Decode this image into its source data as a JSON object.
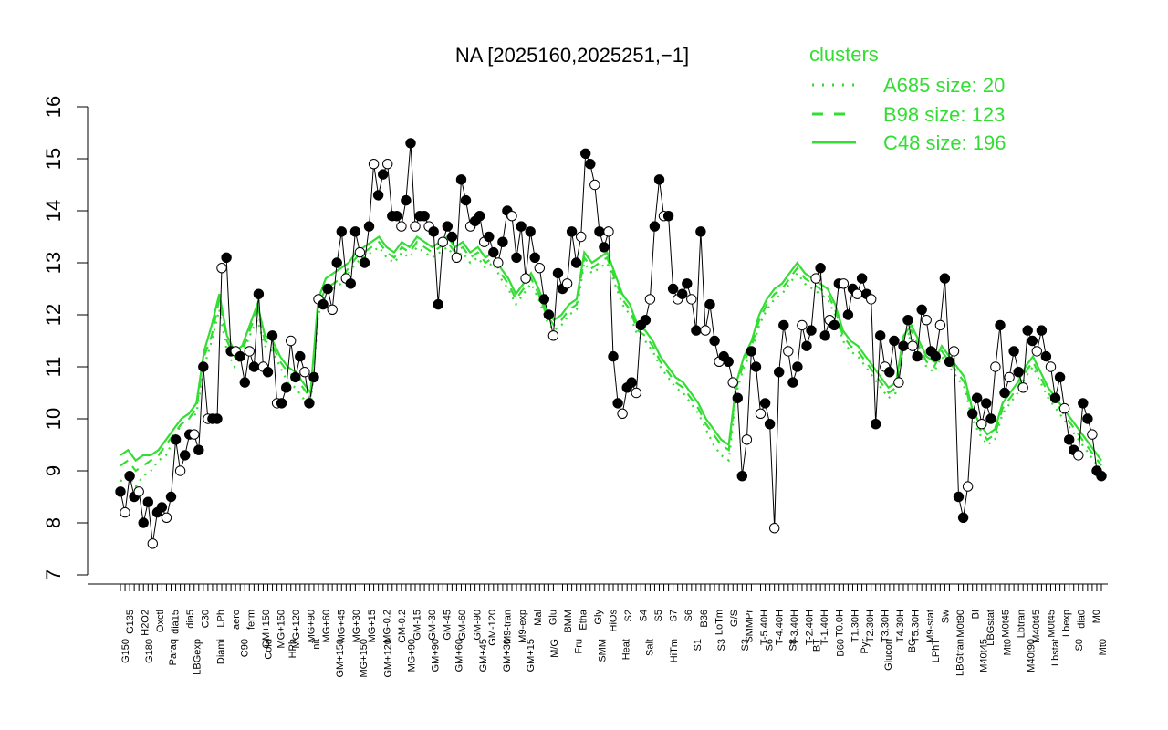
{
  "chart_data": {
    "type": "line",
    "title": "NA [2025160,2025251,−1]",
    "ylim": [
      7,
      16
    ],
    "yticks": [
      "7",
      "8",
      "9",
      "10",
      "11",
      "12",
      "13",
      "14",
      "15",
      "16"
    ],
    "grid": false,
    "legend_placement": "top-right",
    "legend": {
      "title": "clusters",
      "entries": [
        {
          "label": "A685 size: 20",
          "style": "dotted"
        },
        {
          "label": "B98 size: 123",
          "style": "dashed"
        },
        {
          "label": "C48 size: 196",
          "style": "solid"
        }
      ]
    },
    "colors": {
      "cluster": "#33dd33",
      "points": "#000000"
    },
    "x_labels_upper": [
      "G135",
      "H2O2",
      "Oxctl",
      "dia15",
      "dia5",
      "C30",
      "LPh",
      "aero",
      "ferm",
      "GM+150",
      "MG+150",
      "MG+120",
      "MG+90",
      "MG+60",
      "MG+45",
      "MG+30",
      "MG+15",
      "MG-0.2",
      "GM-0.2",
      "GM-15",
      "GM-30",
      "GM-45",
      "GM-60",
      "GM-90",
      "GM-120",
      "M9-tran",
      "M9-exp",
      "Mal",
      "Glu",
      "BMM",
      "Etha",
      "Gly",
      "HiOs",
      "S2",
      "S4",
      "S5",
      "S7",
      "S6",
      "B36",
      "LoTm",
      "G/S",
      "SMMPr",
      "T-5.40H",
      "T-4.40H",
      "T-3.40H",
      "T-2.40H",
      "T-1.40H",
      "T0.0H",
      "T1.30H",
      "T2.30H",
      "T3.30H",
      "T4.30H",
      "T5.30H",
      "M9-stat",
      "Sw",
      "M0t90",
      "BI",
      "LBGstat",
      "M0t45",
      "Lbtran",
      "M40t45",
      "M0t45",
      "Lbexp",
      "dia0",
      "M0"
    ],
    "x_labels_lower": [
      "G150",
      "G180",
      "Paraq",
      "LBGexp",
      "Diami",
      "C90",
      "Cold",
      "HPh",
      "nit",
      "GM+150",
      "MG+150",
      "GM+120",
      "MG+90",
      "GM+90",
      "GM+60",
      "GM+45",
      "GM+30",
      "GM+15",
      "M/G",
      "Fru",
      "SMM",
      "Heat",
      "Salt",
      "HiTm",
      "S1",
      "S3",
      "S3",
      "S6",
      "S8",
      "BT",
      "B60",
      "Pyr",
      "Glucon",
      "BC",
      "LPhT",
      "LBGtran",
      "M40t45",
      "Mt0",
      "M40t90",
      "Lbstat",
      "S0",
      "Mt0"
    ],
    "series": [
      {
        "name": "A685 size: 20",
        "style": "dotted",
        "values": [
          8.8,
          8.9,
          8.7,
          8.9,
          9.0,
          9.2,
          9.3,
          9.6,
          9.9,
          10.0,
          10.1,
          11.0,
          11.5,
          12.1,
          11.3,
          11.0,
          11.2,
          11.6,
          11.9,
          11.4,
          11.3,
          11.0,
          10.7,
          10.6,
          10.4,
          10.2,
          12.0,
          12.4,
          12.5,
          12.6,
          12.8,
          13.0,
          13.1,
          13.2,
          13.3,
          13.1,
          13.0,
          13.2,
          13.1,
          13.3,
          13.2,
          13.1,
          13.2,
          13.3,
          13.1,
          13.2,
          13.0,
          13.1,
          12.9,
          13.0,
          12.7,
          12.5,
          12.2,
          12.4,
          12.6,
          12.3,
          11.9,
          11.7,
          11.8,
          12.0,
          12.1,
          13.0,
          12.8,
          12.9,
          13.0,
          12.6,
          12.2,
          12.0,
          11.6,
          11.5,
          11.3,
          11.0,
          10.8,
          10.6,
          10.5,
          10.3,
          10.1,
          9.8,
          9.5,
          9.3,
          9.2,
          10.5,
          11.0,
          11.3,
          11.8,
          12.1,
          12.3,
          12.4,
          12.6,
          12.8,
          12.6,
          12.5,
          12.4,
          12.3,
          12.0,
          11.5,
          11.3,
          11.2,
          11.0,
          10.8,
          10.6,
          10.4,
          10.5,
          11.4,
          11.6,
          11.3,
          11.0,
          10.9,
          11.2,
          11.0,
          10.8,
          10.6,
          10.0,
          9.7,
          9.5,
          9.6,
          10.1,
          10.3,
          10.5,
          10.8,
          11.0,
          10.7,
          10.4,
          10.2,
          10.0,
          9.8,
          9.6,
          9.4,
          9.2,
          9.0
        ]
      },
      {
        "name": "B98 size: 123",
        "style": "dashed",
        "values": [
          9.1,
          9.2,
          9.0,
          9.1,
          9.2,
          9.3,
          9.5,
          9.7,
          9.9,
          10.0,
          10.2,
          11.2,
          11.6,
          12.3,
          11.5,
          11.2,
          11.3,
          11.7,
          12.1,
          11.5,
          11.4,
          11.1,
          10.9,
          10.8,
          10.6,
          10.4,
          12.2,
          12.5,
          12.6,
          12.7,
          12.9,
          13.1,
          13.2,
          13.3,
          13.4,
          13.2,
          13.1,
          13.3,
          13.2,
          13.4,
          13.3,
          13.2,
          13.3,
          13.4,
          13.2,
          13.3,
          13.1,
          13.2,
          13.0,
          13.1,
          12.8,
          12.6,
          12.3,
          12.5,
          12.7,
          12.4,
          12.0,
          11.8,
          11.9,
          12.1,
          12.2,
          13.1,
          12.9,
          13.0,
          13.1,
          12.7,
          12.3,
          12.1,
          11.7,
          11.6,
          11.4,
          11.1,
          10.9,
          10.7,
          10.6,
          10.4,
          10.2,
          9.9,
          9.7,
          9.5,
          9.4,
          10.6,
          11.1,
          11.4,
          11.9,
          12.2,
          12.4,
          12.5,
          12.7,
          12.9,
          12.7,
          12.6,
          12.5,
          12.4,
          12.1,
          11.6,
          11.4,
          11.3,
          11.1,
          10.9,
          10.7,
          10.5,
          10.6,
          11.5,
          11.7,
          11.4,
          11.1,
          11.0,
          11.3,
          11.1,
          10.9,
          10.7,
          10.1,
          9.8,
          9.6,
          9.7,
          10.2,
          10.4,
          10.6,
          10.9,
          11.1,
          10.8,
          10.5,
          10.3,
          10.1,
          9.9,
          9.7,
          9.5,
          9.3,
          9.1
        ]
      },
      {
        "name": "C48 size: 196",
        "style": "solid",
        "values": [
          9.3,
          9.4,
          9.2,
          9.3,
          9.3,
          9.4,
          9.6,
          9.8,
          10.0,
          10.1,
          10.3,
          11.3,
          11.8,
          12.4,
          11.6,
          11.3,
          11.4,
          11.8,
          12.2,
          11.6,
          11.5,
          11.2,
          11.0,
          10.9,
          10.7,
          10.5,
          12.3,
          12.7,
          12.8,
          12.9,
          13.0,
          13.2,
          13.3,
          13.4,
          13.5,
          13.3,
          13.2,
          13.4,
          13.3,
          13.5,
          13.4,
          13.3,
          13.4,
          13.5,
          13.3,
          13.4,
          13.2,
          13.3,
          13.1,
          13.2,
          12.9,
          12.7,
          12.4,
          12.6,
          12.8,
          12.5,
          12.1,
          11.9,
          12.0,
          12.2,
          12.3,
          13.2,
          13.0,
          13.1,
          13.2,
          12.8,
          12.4,
          12.2,
          11.8,
          11.7,
          11.5,
          11.2,
          11.0,
          10.8,
          10.7,
          10.5,
          10.3,
          10.0,
          9.8,
          9.6,
          9.5,
          10.7,
          11.2,
          11.5,
          12.0,
          12.3,
          12.5,
          12.6,
          12.8,
          13.0,
          12.8,
          12.7,
          12.6,
          12.5,
          12.2,
          11.7,
          11.5,
          11.4,
          11.2,
          11.0,
          10.8,
          10.6,
          10.7,
          11.6,
          11.8,
          11.5,
          11.2,
          11.1,
          11.4,
          11.2,
          11.0,
          10.8,
          10.2,
          9.9,
          9.7,
          9.8,
          10.3,
          10.5,
          10.7,
          11.0,
          11.2,
          10.9,
          10.6,
          10.4,
          10.2,
          10.0,
          9.8,
          9.6,
          9.4,
          9.2
        ]
      },
      {
        "name": "",
        "style": "points",
        "values": [
          8.6,
          8.2,
          8.9,
          8.5,
          8.6,
          8.0,
          8.4,
          7.6,
          8.2,
          8.3,
          8.1,
          8.5,
          9.6,
          9.0,
          9.3,
          9.7,
          9.7,
          9.4,
          11.0,
          10.0,
          10.0,
          10.0,
          12.9,
          13.1,
          11.3,
          11.3,
          11.2,
          10.7,
          11.3,
          11.0,
          12.4,
          11.0,
          10.9,
          11.6,
          10.3,
          10.3,
          10.6,
          11.5,
          10.8,
          11.2,
          10.9,
          10.3,
          10.8,
          12.3,
          12.2,
          12.5,
          12.1,
          13.0,
          13.6,
          12.7,
          12.6,
          13.6,
          13.2,
          13.0,
          13.7,
          14.9,
          14.3,
          14.7,
          14.9,
          13.9,
          13.9,
          13.7,
          14.2,
          15.3,
          13.7,
          13.9,
          13.9,
          13.7,
          13.6,
          12.2,
          13.4,
          13.7,
          13.5,
          13.1,
          14.6,
          14.2,
          13.7,
          13.8,
          13.9,
          13.4,
          13.5,
          13.2,
          13.0,
          13.4,
          14.0,
          13.9,
          13.1,
          13.7,
          12.7,
          13.6,
          13.1,
          12.9,
          12.3,
          12.0,
          11.6,
          12.8,
          12.5,
          12.6,
          13.6,
          13.0,
          13.5,
          15.1,
          14.9,
          14.5,
          13.6,
          13.3,
          13.6,
          11.2,
          10.3,
          10.1,
          10.6,
          10.7,
          10.5,
          11.8,
          11.9,
          12.3,
          13.7,
          14.6,
          13.9,
          13.9,
          12.5,
          12.3,
          12.4,
          12.6,
          12.3,
          11.7,
          13.6,
          11.7,
          12.2,
          11.5,
          11.1,
          11.2,
          11.1,
          10.7,
          10.4,
          8.9,
          9.6,
          11.3,
          11.0,
          10.1,
          10.3,
          9.9,
          7.9,
          10.9,
          11.8,
          11.3,
          10.7,
          11.0,
          11.8,
          11.4,
          11.7,
          12.7,
          12.9,
          11.6,
          11.9,
          11.8,
          12.6,
          12.6,
          12.0,
          12.5,
          12.4,
          12.7,
          12.4,
          12.3,
          9.9,
          11.6,
          11.0,
          10.9,
          11.5,
          10.7,
          11.4,
          11.9,
          11.4,
          11.2,
          12.1,
          11.9,
          11.3,
          11.2,
          11.8,
          12.7,
          11.1,
          11.3,
          8.5,
          8.1,
          8.7,
          10.1,
          10.4,
          9.9,
          10.3,
          10.0,
          11.0,
          11.8,
          10.5,
          10.8,
          11.3,
          10.9,
          10.6,
          11.7,
          11.5,
          11.3,
          11.7,
          11.2,
          11.0,
          10.4,
          10.8,
          10.2,
          9.6,
          9.4,
          9.3,
          10.3,
          10.0,
          9.7,
          9.0,
          8.9
        ]
      }
    ]
  }
}
